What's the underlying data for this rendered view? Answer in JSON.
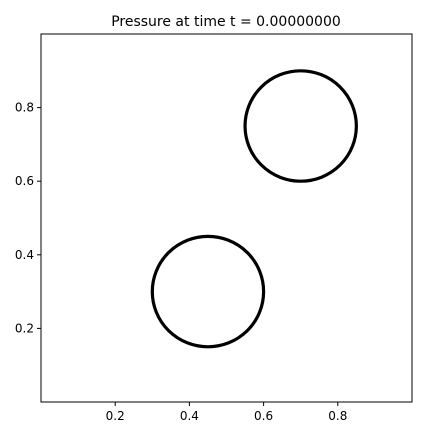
{
  "chart_data": {
    "type": "scatter",
    "title": "Pressure at time t =     0.00000000",
    "xlabel": "",
    "ylabel": "",
    "xlim": [
      0.0,
      1.0
    ],
    "ylim": [
      0.0,
      1.0
    ],
    "xticks": [
      {
        "value": 0.2,
        "label": "0.2"
      },
      {
        "value": 0.4,
        "label": "0.4"
      },
      {
        "value": 0.6,
        "label": "0.6"
      },
      {
        "value": 0.8,
        "label": "0.8"
      }
    ],
    "yticks": [
      {
        "value": 0.2,
        "label": "0.2"
      },
      {
        "value": 0.4,
        "label": "0.4"
      },
      {
        "value": 0.6,
        "label": "0.6"
      },
      {
        "value": 0.8,
        "label": "0.8"
      }
    ],
    "grid": false,
    "circles": [
      {
        "cx": 0.45,
        "cy": 0.3,
        "r": 0.15
      },
      {
        "cx": 0.7,
        "cy": 0.75,
        "r": 0.15
      }
    ],
    "colors": {
      "circle": "#000000",
      "axes": "#000000"
    }
  }
}
